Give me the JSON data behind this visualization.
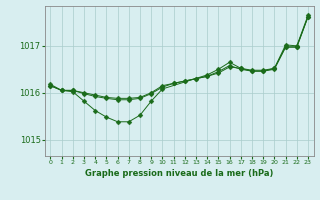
{
  "bg_color": "#d8eef0",
  "grid_color": "#aacccc",
  "line_color": "#1a6b1a",
  "title": "Graphe pression niveau de la mer (hPa)",
  "xlim": [
    -0.5,
    23.5
  ],
  "ylim": [
    1014.65,
    1017.85
  ],
  "yticks": [
    1015,
    1016,
    1017
  ],
  "xtick_labels": [
    "0",
    "1",
    "2",
    "3",
    "4",
    "5",
    "6",
    "7",
    "8",
    "9",
    "10",
    "11",
    "12",
    "13",
    "14",
    "15",
    "16",
    "17",
    "18",
    "19",
    "20",
    "21",
    "22",
    "23"
  ],
  "series1_x": [
    0,
    1,
    2,
    3,
    4,
    5,
    6,
    7,
    8,
    9,
    10,
    11,
    12,
    13,
    14,
    15,
    16,
    17,
    18,
    19,
    20,
    21,
    22,
    23
  ],
  "series1_y": [
    1016.15,
    1016.05,
    1016.05,
    1016.0,
    1015.95,
    1015.9,
    1015.88,
    1015.88,
    1015.9,
    1016.0,
    1016.15,
    1016.2,
    1016.25,
    1016.3,
    1016.35,
    1016.42,
    1016.55,
    1016.52,
    1016.48,
    1016.48,
    1016.52,
    1016.98,
    1016.98,
    1017.62
  ],
  "series2_x": [
    0,
    1,
    2,
    3,
    4,
    5,
    6,
    7,
    8,
    9,
    10,
    11,
    12,
    13,
    14,
    15,
    16,
    17,
    18,
    19,
    20,
    21,
    22,
    23
  ],
  "series2_y": [
    1016.15,
    1016.05,
    1016.05,
    1015.98,
    1015.92,
    1015.88,
    1015.85,
    1015.85,
    1015.88,
    1015.98,
    1016.12,
    1016.2,
    1016.25,
    1016.3,
    1016.35,
    1016.45,
    1016.58,
    1016.5,
    1016.46,
    1016.46,
    1016.5,
    1016.97,
    1016.97,
    1017.62
  ],
  "series3_x": [
    0,
    1,
    2,
    3,
    4,
    5,
    6,
    7,
    8,
    9,
    10,
    14,
    15,
    16,
    17,
    18,
    19,
    20,
    21,
    22,
    23
  ],
  "series3_y": [
    1016.18,
    1016.05,
    1016.02,
    1015.82,
    1015.62,
    1015.48,
    1015.38,
    1015.38,
    1015.52,
    1015.82,
    1016.08,
    1016.38,
    1016.5,
    1016.65,
    1016.52,
    1016.46,
    1016.46,
    1016.52,
    1017.02,
    1017.0,
    1017.65
  ],
  "marker_size": 2.5
}
